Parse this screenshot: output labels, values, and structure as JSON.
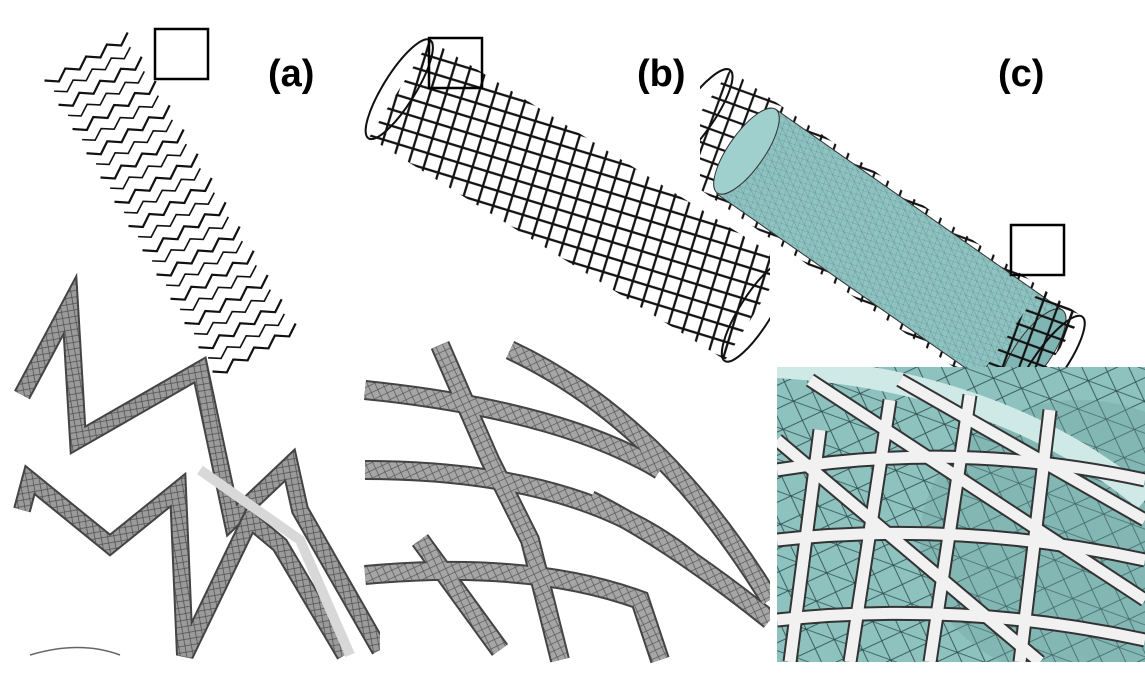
{
  "figure": {
    "panels": [
      {
        "id": "a",
        "label": "(a)",
        "stent_type": "zigzag-ring"
      },
      {
        "id": "b",
        "label": "(b)",
        "stent_type": "braided-lattice"
      },
      {
        "id": "c",
        "label": "(c)",
        "stent_type": "braided-lattice-with-artery"
      }
    ],
    "colors": {
      "strut_dark": "#111111",
      "strut_mesh": "#a9a9a9",
      "strut_light": "#f2f2f2",
      "artery_fill": "#8fc3c1",
      "zoom_box": "#000000"
    }
  }
}
